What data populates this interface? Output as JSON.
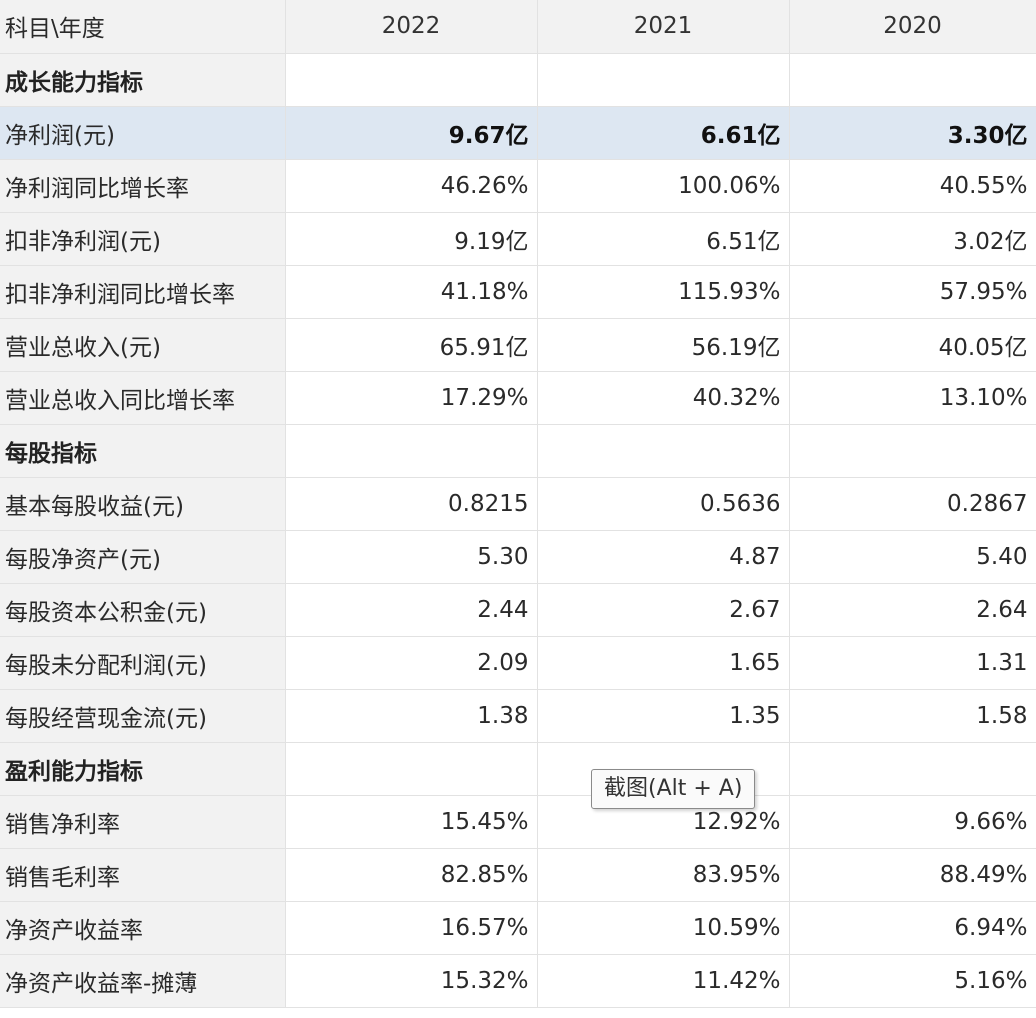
{
  "header": {
    "label": "科目\\年度",
    "years": [
      "2022",
      "2021",
      "2020"
    ]
  },
  "rows": [
    {
      "label": "成长能力指标",
      "values": [
        "",
        "",
        ""
      ]
    },
    {
      "label": "净利润(元)",
      "values": [
        "9.67亿",
        "6.61亿",
        "3.30亿"
      ]
    },
    {
      "label": "净利润同比增长率",
      "values": [
        "46.26%",
        "100.06%",
        "40.55%"
      ]
    },
    {
      "label": "扣非净利润(元)",
      "values": [
        "9.19亿",
        "6.51亿",
        "3.02亿"
      ]
    },
    {
      "label": "扣非净利润同比增长率",
      "values": [
        "41.18%",
        "115.93%",
        "57.95%"
      ]
    },
    {
      "label": "营业总收入(元)",
      "values": [
        "65.91亿",
        "56.19亿",
        "40.05亿"
      ]
    },
    {
      "label": "营业总收入同比增长率",
      "values": [
        "17.29%",
        "40.32%",
        "13.10%"
      ]
    },
    {
      "label": "每股指标",
      "values": [
        "",
        "",
        ""
      ]
    },
    {
      "label": "基本每股收益(元)",
      "values": [
        "0.8215",
        "0.5636",
        "0.2867"
      ]
    },
    {
      "label": "每股净资产(元)",
      "values": [
        "5.30",
        "4.87",
        "5.40"
      ]
    },
    {
      "label": "每股资本公积金(元)",
      "values": [
        "2.44",
        "2.67",
        "2.64"
      ]
    },
    {
      "label": "每股未分配利润(元)",
      "values": [
        "2.09",
        "1.65",
        "1.31"
      ]
    },
    {
      "label": "每股经营现金流(元)",
      "values": [
        "1.38",
        "1.35",
        "1.58"
      ]
    },
    {
      "label": "盈利能力指标",
      "values": [
        "",
        "",
        ""
      ]
    },
    {
      "label": "销售净利率",
      "values": [
        "15.45%",
        "12.92%",
        "9.66%"
      ]
    },
    {
      "label": "销售毛利率",
      "values": [
        "82.85%",
        "83.95%",
        "88.49%"
      ]
    },
    {
      "label": "净资产收益率",
      "values": [
        "16.57%",
        "10.59%",
        "6.94%"
      ]
    },
    {
      "label": "净资产收益率-摊薄",
      "values": [
        "15.32%",
        "11.42%",
        "5.16%"
      ]
    }
  ],
  "tooltip": {
    "text": "截图(Alt + A)"
  },
  "colors": {
    "label_bg": "#f2f2f2",
    "highlight_bg": "#dde7f2",
    "border": "#e2e2e2"
  }
}
